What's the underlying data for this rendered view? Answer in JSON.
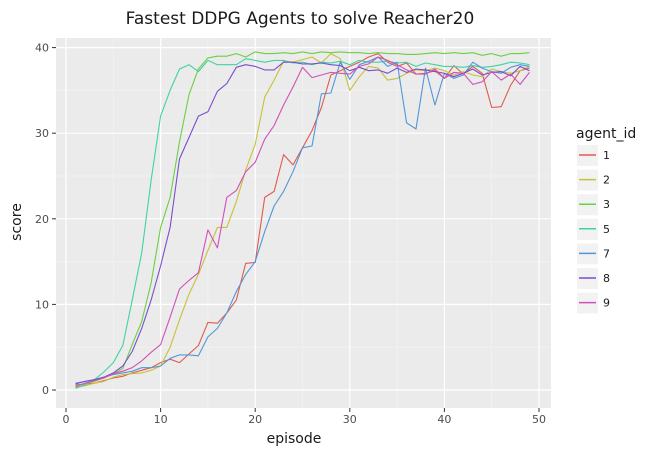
{
  "chart_data": {
    "type": "line",
    "title": "Fastest DDPG Agents to solve Reacher20",
    "xlabel": "episode",
    "ylabel": "score",
    "xlim": [
      0,
      50
    ],
    "ylim": [
      -1.5,
      41.5
    ],
    "xticks": [
      0,
      10,
      20,
      30,
      40,
      50
    ],
    "yticks": [
      0,
      10,
      20,
      30,
      40
    ],
    "grid": true,
    "legend_title": "agent_id",
    "legend_position": "right",
    "series": [
      {
        "name": "1",
        "color": "#e05a4e",
        "x": [
          1,
          2,
          3,
          4,
          5,
          6,
          7,
          8,
          9,
          10,
          11,
          12,
          13,
          14,
          15,
          16,
          17,
          18,
          19,
          20,
          21,
          22,
          23,
          24,
          25,
          26,
          27,
          28,
          29,
          30,
          31,
          32,
          33,
          34,
          35,
          36,
          37,
          38,
          39,
          40,
          41,
          42,
          43,
          44,
          45,
          46,
          47,
          48,
          49
        ],
        "values": [
          0.6,
          0.7,
          0.8,
          1.1,
          1.4,
          1.6,
          2.0,
          2.3,
          2.6,
          3.2,
          3.6,
          3.2,
          4.2,
          5.2,
          7.9,
          7.8,
          9.0,
          10.5,
          14.8,
          14.9,
          22.5,
          23.2,
          27.5,
          26.3,
          28.3,
          30.3,
          33.0,
          36.8,
          37.3,
          37.8,
          38.3,
          38.9,
          39.3,
          38.3,
          37.8,
          38.2,
          36.9,
          37.0,
          37.3,
          36.4,
          37.9,
          36.9,
          37.8,
          37.0,
          33.0,
          33.1,
          35.6,
          37.3,
          37.6
        ]
      },
      {
        "name": "2",
        "color": "#c9c036",
        "x": [
          1,
          2,
          3,
          4,
          5,
          6,
          7,
          8,
          9,
          10,
          11,
          12,
          13,
          14,
          15,
          16,
          17,
          18,
          19,
          20,
          21,
          22,
          23,
          24,
          25,
          26,
          27,
          28,
          29,
          30,
          31,
          32,
          33,
          34,
          35,
          36,
          37,
          38,
          39,
          40,
          41,
          42,
          43,
          44,
          45,
          46,
          47,
          48,
          49
        ],
        "values": [
          0.3,
          0.5,
          0.8,
          1.0,
          1.5,
          1.8,
          1.9,
          2.0,
          2.3,
          2.8,
          5.0,
          8.2,
          11.2,
          13.5,
          16.3,
          19.0,
          19.0,
          22.0,
          25.7,
          28.7,
          34.2,
          36.2,
          38.4,
          38.3,
          38.6,
          38.9,
          38.2,
          39.3,
          38.7,
          35.0,
          36.6,
          37.8,
          37.6,
          36.2,
          36.4,
          37.0,
          37.4,
          37.3,
          37.6,
          37.3,
          36.8,
          37.2,
          36.8,
          36.6,
          37.5,
          37.2,
          37.0,
          37.3,
          37.8
        ]
      },
      {
        "name": "3",
        "color": "#6bd044",
        "x": [
          1,
          2,
          3,
          4,
          5,
          6,
          7,
          8,
          9,
          10,
          11,
          12,
          13,
          14,
          15,
          16,
          17,
          18,
          19,
          20,
          21,
          22,
          23,
          24,
          25,
          26,
          27,
          28,
          29,
          30,
          31,
          32,
          33,
          34,
          35,
          36,
          37,
          38,
          39,
          40,
          41,
          42,
          43,
          44,
          45,
          46,
          47,
          48,
          49
        ],
        "values": [
          0.5,
          0.7,
          1.0,
          1.4,
          1.9,
          2.5,
          5.3,
          8.0,
          12.5,
          19.0,
          22.5,
          29.0,
          34.5,
          37.5,
          38.8,
          39.0,
          39.0,
          39.3,
          38.9,
          39.5,
          39.3,
          39.3,
          39.4,
          39.3,
          39.5,
          39.3,
          39.5,
          39.4,
          39.5,
          39.4,
          39.4,
          39.3,
          39.4,
          39.3,
          39.3,
          39.2,
          39.2,
          39.3,
          39.4,
          39.3,
          39.4,
          39.3,
          39.4,
          39.1,
          39.3,
          39.0,
          39.3,
          39.3,
          39.4
        ]
      },
      {
        "name": "5",
        "color": "#3ed3a4",
        "x": [
          1,
          2,
          3,
          4,
          5,
          6,
          7,
          8,
          9,
          10,
          11,
          12,
          13,
          14,
          15,
          16,
          17,
          18,
          19,
          20,
          21,
          22,
          23,
          24,
          25,
          26,
          27,
          28,
          29,
          30,
          31,
          32,
          33,
          34,
          35,
          36,
          37,
          38,
          39,
          40,
          41,
          42,
          43,
          44,
          45,
          46,
          47,
          48,
          49
        ],
        "values": [
          0.2,
          0.6,
          1.2,
          2.1,
          3.2,
          5.2,
          10.5,
          16.0,
          24.5,
          32.0,
          35.0,
          37.5,
          38.0,
          37.2,
          38.5,
          38.0,
          38.0,
          38.0,
          38.7,
          38.5,
          38.3,
          38.5,
          38.5,
          38.2,
          38.3,
          38.0,
          38.3,
          38.2,
          38.4,
          38.0,
          38.5,
          38.3,
          38.3,
          38.4,
          38.2,
          38.3,
          37.8,
          38.2,
          38.0,
          37.8,
          37.8,
          37.7,
          37.9,
          37.7,
          37.8,
          38.0,
          38.3,
          38.2,
          38.0
        ]
      },
      {
        "name": "7",
        "color": "#4f98d8",
        "x": [
          1,
          2,
          3,
          4,
          5,
          6,
          7,
          8,
          9,
          10,
          11,
          12,
          13,
          14,
          15,
          16,
          17,
          18,
          19,
          20,
          21,
          22,
          23,
          24,
          25,
          26,
          27,
          28,
          29,
          30,
          31,
          32,
          33,
          34,
          35,
          36,
          37,
          38,
          39,
          40,
          41,
          42,
          43,
          44,
          45,
          46,
          47,
          48,
          49
        ],
        "values": [
          0.8,
          1.0,
          1.2,
          1.5,
          1.8,
          2.0,
          2.2,
          2.6,
          2.6,
          2.8,
          3.7,
          4.1,
          4.1,
          4.0,
          6.2,
          7.2,
          9.0,
          11.5,
          13.5,
          15.0,
          18.5,
          21.5,
          23.2,
          25.5,
          28.3,
          28.5,
          34.6,
          34.7,
          38.3,
          36.3,
          38.0,
          38.4,
          38.9,
          37.8,
          38.3,
          31.2,
          30.5,
          37.6,
          33.3,
          37.0,
          36.4,
          36.8,
          38.3,
          37.6,
          37.2,
          37.0,
          37.7,
          38.0,
          37.8
        ]
      },
      {
        "name": "8",
        "color": "#7a4dd0",
        "x": [
          1,
          2,
          3,
          4,
          5,
          6,
          7,
          8,
          9,
          10,
          11,
          12,
          13,
          14,
          15,
          16,
          17,
          18,
          19,
          20,
          21,
          22,
          23,
          24,
          25,
          26,
          27,
          28,
          29,
          30,
          31,
          32,
          33,
          34,
          35,
          36,
          37,
          38,
          39,
          40,
          41,
          42,
          43,
          44,
          45,
          46,
          47,
          48,
          49
        ],
        "values": [
          0.7,
          1.0,
          1.2,
          1.5,
          2.0,
          2.8,
          4.5,
          7.2,
          10.5,
          14.5,
          19.0,
          27.0,
          29.5,
          32.0,
          32.5,
          34.9,
          35.8,
          37.7,
          38.0,
          37.8,
          37.4,
          37.4,
          38.3,
          38.3,
          38.1,
          38.1,
          38.2,
          38.0,
          37.9,
          37.3,
          37.7,
          37.3,
          37.4,
          37.0,
          37.6,
          37.1,
          37.5,
          37.4,
          37.2,
          37.0,
          36.6,
          37.0,
          37.5,
          36.8,
          37.1,
          37.2,
          36.7,
          37.8,
          37.3
        ]
      },
      {
        "name": "9",
        "color": "#d24fb8",
        "x": [
          1,
          2,
          3,
          4,
          5,
          6,
          7,
          8,
          9,
          10,
          11,
          12,
          13,
          14,
          15,
          16,
          17,
          18,
          19,
          20,
          21,
          22,
          23,
          24,
          25,
          26,
          27,
          28,
          29,
          30,
          31,
          32,
          33,
          34,
          35,
          36,
          37,
          38,
          39,
          40,
          41,
          42,
          43,
          44,
          45,
          46,
          47,
          48,
          49
        ],
        "values": [
          0.4,
          0.8,
          1.1,
          1.4,
          1.9,
          2.2,
          2.6,
          3.4,
          4.4,
          5.3,
          8.5,
          11.8,
          12.8,
          13.7,
          18.7,
          16.6,
          22.5,
          23.3,
          25.5,
          26.6,
          29.3,
          30.9,
          33.3,
          35.4,
          37.7,
          36.5,
          36.8,
          37.1,
          37.0,
          36.9,
          37.8,
          38.1,
          38.9,
          38.5,
          38.0,
          37.4,
          36.9,
          36.9,
          37.5,
          36.4,
          37.1,
          37.0,
          35.7,
          36.0,
          37.2,
          36.2,
          36.9,
          35.7,
          37.1
        ]
      }
    ]
  }
}
